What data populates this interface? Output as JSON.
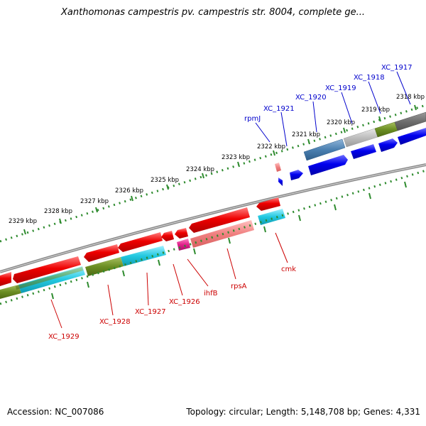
{
  "title": "Xanthomonas campestris pv. campestris str. 8004, complete ge...",
  "footer": {
    "accession": "Accession: NC_007086",
    "stats": "Topology: circular; Length: 5,148,708 bp; Genes: 4,331"
  },
  "colors": {
    "backbone": "#7a7a7a",
    "tick": "#2e8b2e",
    "forward_label": "#0000cc",
    "reverse_label": "#cc0000",
    "forward_gene": "#0000ee",
    "reverse_gene": "#ee0000",
    "cds_blue": "#4a7fb0",
    "olive": "#6b8e23",
    "cyan": "#22c8e0",
    "magenta": "#e0208c",
    "salmon": "#f08080",
    "grey": "#bdbdbd",
    "dark_grey": "#6e6e6e"
  },
  "scale_labels": [
    {
      "text": "2318 kbp"
    },
    {
      "text": "2319 kbp"
    },
    {
      "text": "2320 kbp"
    },
    {
      "text": "2321 kbp"
    },
    {
      "text": "2322 kbp"
    },
    {
      "text": "2323 kbp"
    },
    {
      "text": "2324 kbp"
    },
    {
      "text": "2325 kbp"
    },
    {
      "text": "2326 kbp"
    },
    {
      "text": "2327 kbp"
    },
    {
      "text": "2328 kbp"
    },
    {
      "text": "2329 kbp"
    }
  ],
  "forward_genes": [
    {
      "name": "XC_1917"
    },
    {
      "name": "XC_1918"
    },
    {
      "name": "XC_1919"
    },
    {
      "name": "XC_1920"
    },
    {
      "name": "XC_1921"
    },
    {
      "name": "rpmJ"
    }
  ],
  "reverse_genes": [
    {
      "name": "cmk"
    },
    {
      "name": "rpsA"
    },
    {
      "name": "ihfB"
    },
    {
      "name": "XC_1926"
    },
    {
      "name": "XC_1927"
    },
    {
      "name": "XC_1928"
    },
    {
      "name": "XC_1929"
    }
  ]
}
